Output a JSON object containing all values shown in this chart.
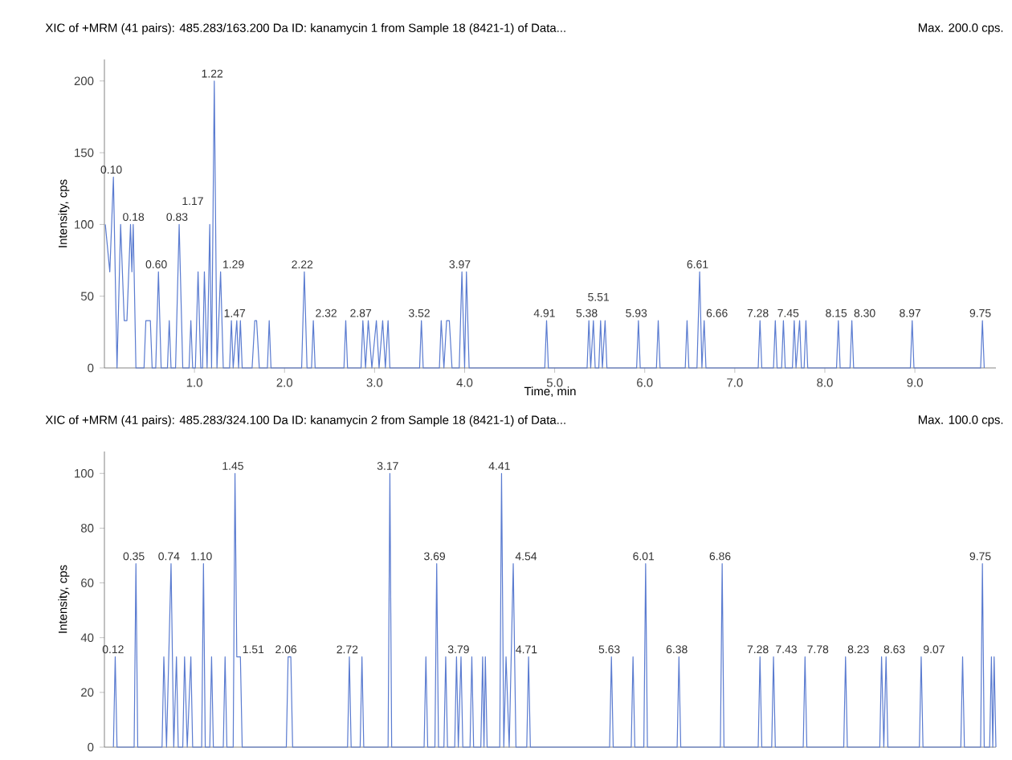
{
  "chart_data": [
    {
      "type": "line",
      "title": "XIC of +MRM (41 pairs): 485.283/163.200 Da ID: kanamycin 1 from Sample 18 (8421-1) of Data...",
      "subtitle": "Max. 200.0 cps.",
      "xlabel": "Time, min",
      "ylabel": "Intensity, cps",
      "color": "#5a7bd0",
      "x": [
        0.01,
        0.06,
        0.1,
        0.14,
        0.18,
        0.22,
        0.25,
        0.29,
        0.305,
        0.32,
        0.35,
        0.44,
        0.46,
        0.51,
        0.53,
        0.57,
        0.6,
        0.63,
        0.7,
        0.72,
        0.74,
        0.79,
        0.83,
        0.87,
        0.94,
        0.96,
        0.98,
        1.01,
        1.04,
        1.07,
        1.09,
        1.11,
        1.14,
        1.17,
        1.19,
        1.22,
        1.25,
        1.29,
        1.32,
        1.39,
        1.41,
        1.43,
        1.47,
        1.49,
        1.51,
        1.53,
        1.64,
        1.67,
        1.69,
        1.72,
        1.81,
        1.83,
        1.85,
        2.19,
        2.22,
        2.25,
        2.3,
        2.32,
        2.34,
        2.66,
        2.68,
        2.7,
        2.85,
        2.87,
        2.9,
        2.93,
        2.97,
        3.02,
        3.05,
        3.09,
        3.12,
        3.15,
        3.17,
        3.5,
        3.52,
        3.54,
        3.72,
        3.74,
        3.77,
        3.8,
        3.83,
        3.86,
        3.94,
        3.97,
        4.0,
        4.02,
        4.05,
        4.89,
        4.91,
        4.93,
        5.36,
        5.38,
        5.4,
        5.43,
        5.45,
        5.49,
        5.51,
        5.53,
        5.56,
        5.58,
        5.91,
        5.93,
        5.95,
        6.13,
        6.15,
        6.17,
        6.45,
        6.47,
        6.49,
        6.58,
        6.61,
        6.635,
        6.66,
        6.68,
        7.26,
        7.28,
        7.3,
        7.43,
        7.45,
        7.47,
        7.52,
        7.54,
        7.56,
        7.64,
        7.66,
        7.68,
        7.72,
        7.74,
        7.77,
        7.79,
        7.81,
        8.13,
        8.15,
        8.17,
        8.28,
        8.3,
        8.32,
        8.95,
        8.97,
        8.99,
        9.73,
        9.75,
        9.77
      ],
      "values": [
        100,
        67,
        133,
        0,
        100,
        33,
        33,
        100,
        67,
        100,
        0,
        0,
        33,
        33,
        0,
        0,
        67,
        0,
        0,
        33,
        0,
        0,
        100,
        0,
        0,
        33,
        0,
        0,
        67,
        0,
        0,
        67,
        0,
        100,
        0,
        200,
        0,
        67,
        0,
        0,
        33,
        0,
        33,
        0,
        33,
        0,
        0,
        33,
        33,
        0,
        0,
        33,
        0,
        0,
        67,
        0,
        0,
        33,
        0,
        0,
        33,
        0,
        0,
        33,
        0,
        33,
        0,
        33,
        0,
        33,
        0,
        33,
        0,
        0,
        33,
        0,
        0,
        33,
        0,
        33,
        33,
        0,
        0,
        67,
        0,
        67,
        0,
        0,
        33,
        0,
        0,
        33,
        0,
        33,
        0,
        0,
        33,
        0,
        33,
        0,
        0,
        33,
        0,
        0,
        33,
        0,
        0,
        33,
        0,
        0,
        67,
        0,
        33,
        0,
        0,
        33,
        0,
        0,
        33,
        0,
        0,
        33,
        0,
        0,
        33,
        0,
        33,
        0,
        0,
        33,
        0,
        0,
        33,
        0,
        0,
        33,
        0,
        0,
        33,
        0,
        0,
        33,
        0
      ],
      "xlim": [
        0,
        9.9
      ],
      "ylim": [
        0,
        215
      ],
      "xticks": [
        {
          "value": 1,
          "label": "1.0"
        },
        {
          "value": 2,
          "label": "2.0"
        },
        {
          "value": 3,
          "label": "3.0"
        },
        {
          "value": 4,
          "label": "4.0"
        },
        {
          "value": 5,
          "label": "5.0"
        },
        {
          "value": 6,
          "label": "6.0"
        },
        {
          "value": 7,
          "label": "7.0"
        },
        {
          "value": 8,
          "label": "8.0"
        },
        {
          "value": 9,
          "label": "9.0"
        }
      ],
      "yticks": [
        0,
        50,
        100,
        150,
        200
      ],
      "annotations": [
        {
          "text": "0.10",
          "x": 0.1,
          "y": 133
        },
        {
          "text": "0.18",
          "x": 0.18,
          "y": 100
        },
        {
          "text": "0.60",
          "x": 0.6,
          "y": 67
        },
        {
          "text": "0.83",
          "x": 0.83,
          "y": 100
        },
        {
          "text": "1.17",
          "x": 1.17,
          "y": 100
        },
        {
          "text": "1.22",
          "x": 1.22,
          "y": 200
        },
        {
          "text": "1.29",
          "x": 1.29,
          "y": 67
        },
        {
          "text": "1.47",
          "x": 1.47,
          "y": 33
        },
        {
          "text": "2.22",
          "x": 2.22,
          "y": 67
        },
        {
          "text": "2.32",
          "x": 2.32,
          "y": 33
        },
        {
          "text": "2.87",
          "x": 2.87,
          "y": 33
        },
        {
          "text": "3.52",
          "x": 3.52,
          "y": 33
        },
        {
          "text": "3.97",
          "x": 3.97,
          "y": 67
        },
        {
          "text": "4.91",
          "x": 4.91,
          "y": 33
        },
        {
          "text": "5.38",
          "x": 5.38,
          "y": 33
        },
        {
          "text": "5.51",
          "x": 5.51,
          "y": 33
        },
        {
          "text": "5.93",
          "x": 5.93,
          "y": 33
        },
        {
          "text": "6.61",
          "x": 6.61,
          "y": 67
        },
        {
          "text": "6.66",
          "x": 6.66,
          "y": 33
        },
        {
          "text": "7.28",
          "x": 7.28,
          "y": 33
        },
        {
          "text": "7.45",
          "x": 7.45,
          "y": 33
        },
        {
          "text": "8.15",
          "x": 8.15,
          "y": 33
        },
        {
          "text": "8.30",
          "x": 8.3,
          "y": 33
        },
        {
          "text": "8.97",
          "x": 8.97,
          "y": 33
        },
        {
          "text": "9.75",
          "x": 9.75,
          "y": 33
        }
      ]
    },
    {
      "type": "line",
      "title": "XIC of +MRM (41 pairs): 485.283/324.100 Da ID: kanamycin 2 from Sample 18 (8421-1) of Data...",
      "subtitle": "Max. 100.0 cps.",
      "ylabel": "Intensity, cps",
      "color": "#5a7bd0",
      "x": [
        0.1,
        0.12,
        0.14,
        0.33,
        0.35,
        0.37,
        0.64,
        0.66,
        0.69,
        0.74,
        0.77,
        0.8,
        0.82,
        0.87,
        0.89,
        0.92,
        0.96,
        0.98,
        1.08,
        1.1,
        1.12,
        1.17,
        1.19,
        1.21,
        1.32,
        1.34,
        1.36,
        1.43,
        1.45,
        1.47,
        1.51,
        1.53,
        2.02,
        2.04,
        2.07,
        2.09,
        2.7,
        2.72,
        2.74,
        2.84,
        2.86,
        2.88,
        3.15,
        3.17,
        3.19,
        3.55,
        3.57,
        3.59,
        3.67,
        3.69,
        3.71,
        3.77,
        3.79,
        3.81,
        3.89,
        3.91,
        3.93,
        3.96,
        3.98,
        4.06,
        4.08,
        4.1,
        4.18,
        4.2,
        4.215,
        4.23,
        4.25,
        4.39,
        4.41,
        4.435,
        4.46,
        4.495,
        4.54,
        4.57,
        4.69,
        4.71,
        4.73,
        5.61,
        5.63,
        5.65,
        5.85,
        5.87,
        5.89,
        5.99,
        6.01,
        6.03,
        6.36,
        6.38,
        6.4,
        6.84,
        6.86,
        6.88,
        7.26,
        7.28,
        7.3,
        7.41,
        7.43,
        7.45,
        7.76,
        7.78,
        7.8,
        8.21,
        8.23,
        8.25,
        8.61,
        8.63,
        8.655,
        8.68,
        8.7,
        9.05,
        9.07,
        9.09,
        9.51,
        9.53,
        9.55,
        9.73,
        9.75,
        9.77,
        9.83,
        9.85,
        9.865,
        9.88,
        9.9
      ],
      "values": [
        0,
        33,
        0,
        0,
        67,
        0,
        0,
        33,
        0,
        67,
        0,
        33,
        0,
        0,
        33,
        0,
        33,
        0,
        0,
        67,
        0,
        0,
        33,
        0,
        0,
        33,
        0,
        0,
        100,
        33,
        33,
        0,
        0,
        33,
        33,
        0,
        0,
        33,
        0,
        0,
        33,
        0,
        0,
        100,
        0,
        0,
        33,
        0,
        0,
        67,
        0,
        0,
        33,
        0,
        0,
        33,
        0,
        33,
        0,
        0,
        33,
        0,
        0,
        33,
        0,
        33,
        0,
        0,
        100,
        0,
        33,
        0,
        67,
        0,
        0,
        33,
        0,
        0,
        33,
        0,
        0,
        33,
        0,
        0,
        67,
        0,
        0,
        33,
        0,
        0,
        67,
        0,
        0,
        33,
        0,
        0,
        33,
        0,
        0,
        33,
        0,
        0,
        33,
        0,
        0,
        33,
        0,
        33,
        0,
        0,
        33,
        0,
        0,
        33,
        0,
        0,
        67,
        0,
        0,
        33,
        0,
        33,
        0
      ],
      "xlim": [
        0,
        9.9
      ],
      "ylim": [
        0,
        108
      ],
      "tick_labels": "y",
      "yticks": [
        0,
        20,
        40,
        60,
        80,
        100
      ],
      "annotations": [
        {
          "text": "0.12",
          "x": 0.12,
          "y": 33
        },
        {
          "text": "0.35",
          "x": 0.35,
          "y": 67
        },
        {
          "text": "0.74",
          "x": 0.74,
          "y": 67
        },
        {
          "text": "1.10",
          "x": 1.1,
          "y": 67
        },
        {
          "text": "1.45",
          "x": 1.45,
          "y": 100
        },
        {
          "text": "1.51",
          "x": 1.51,
          "y": 33
        },
        {
          "text": "2.06",
          "x": 2.04,
          "y": 33
        },
        {
          "text": "2.72",
          "x": 2.72,
          "y": 33
        },
        {
          "text": "3.17",
          "x": 3.17,
          "y": 100
        },
        {
          "text": "3.69",
          "x": 3.69,
          "y": 67
        },
        {
          "text": "3.79",
          "x": 3.79,
          "y": 33
        },
        {
          "text": "4.41",
          "x": 4.41,
          "y": 100
        },
        {
          "text": "4.54",
          "x": 4.54,
          "y": 67
        },
        {
          "text": "4.71",
          "x": 4.71,
          "y": 33
        },
        {
          "text": "5.63",
          "x": 5.63,
          "y": 33
        },
        {
          "text": "6.01",
          "x": 6.01,
          "y": 67
        },
        {
          "text": "6.38",
          "x": 6.38,
          "y": 33
        },
        {
          "text": "6.86",
          "x": 6.86,
          "y": 67
        },
        {
          "text": "7.28",
          "x": 7.28,
          "y": 33
        },
        {
          "text": "7.43",
          "x": 7.43,
          "y": 33
        },
        {
          "text": "7.78",
          "x": 7.78,
          "y": 33
        },
        {
          "text": "8.23",
          "x": 8.23,
          "y": 33
        },
        {
          "text": "8.63",
          "x": 8.63,
          "y": 33
        },
        {
          "text": "9.07",
          "x": 9.07,
          "y": 33
        },
        {
          "text": "9.75",
          "x": 9.75,
          "y": 67
        }
      ]
    }
  ]
}
